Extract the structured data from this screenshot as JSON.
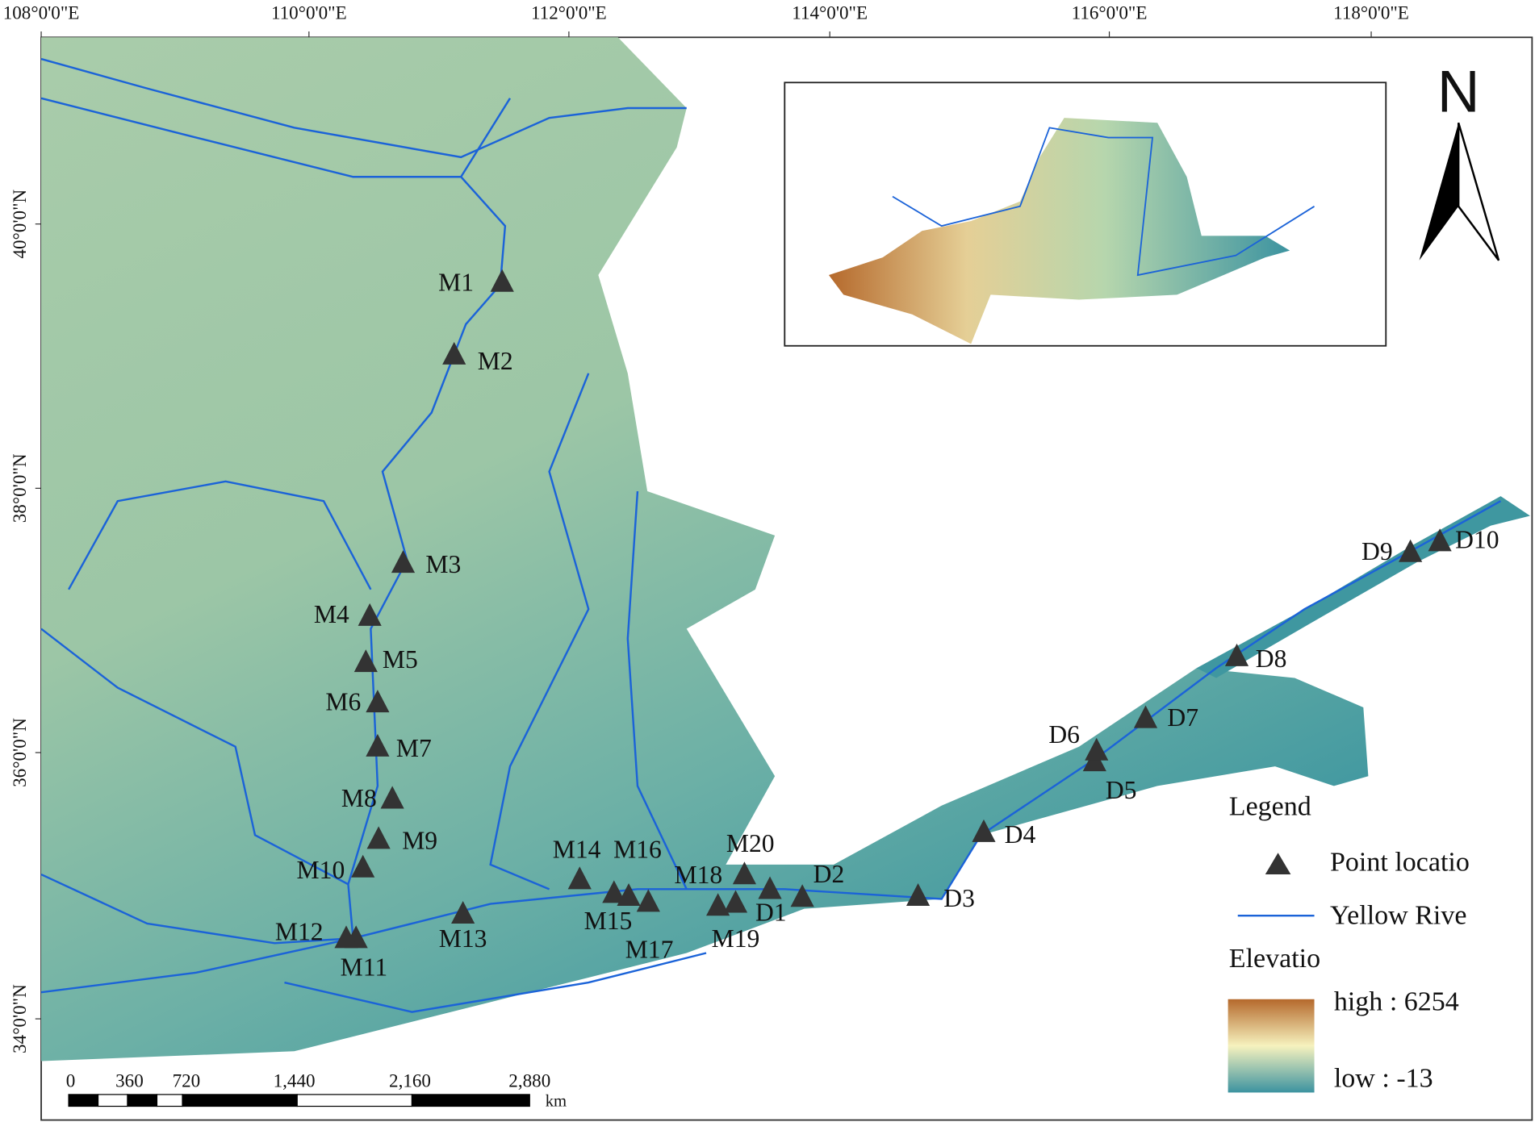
{
  "axes": {
    "longitude_labels": [
      "108°0'0\"E",
      "110°0'0\"E",
      "112°0'0\"E",
      "114°0'0\"E",
      "116°0'0\"E",
      "118°0'0\"E"
    ],
    "latitude_labels": [
      "40°0'0\"N",
      "38°0'0\"N",
      "36°0'0\"N",
      "34°0'0\"N"
    ]
  },
  "north_arrow": "N",
  "points": [
    "M1",
    "M2",
    "M3",
    "M4",
    "M5",
    "M6",
    "M7",
    "M8",
    "M9",
    "M10",
    "M11",
    "M12",
    "M13",
    "M14",
    "M15",
    "M16",
    "M17",
    "M18",
    "M19",
    "M20",
    "D1",
    "D2",
    "D3",
    "D4",
    "D5",
    "D6",
    "D7",
    "D8",
    "D9",
    "D10"
  ],
  "legend": {
    "title": "Legend",
    "items": [
      "Point locatio",
      "Yellow Rive"
    ],
    "elevation": {
      "title": "Elevatio",
      "high": "high : 6254",
      "low": "low : -13"
    }
  },
  "scale_bar": {
    "labels": [
      "0",
      "360",
      "720",
      "1,440",
      "2,160",
      "2,880"
    ],
    "unit": "km"
  }
}
